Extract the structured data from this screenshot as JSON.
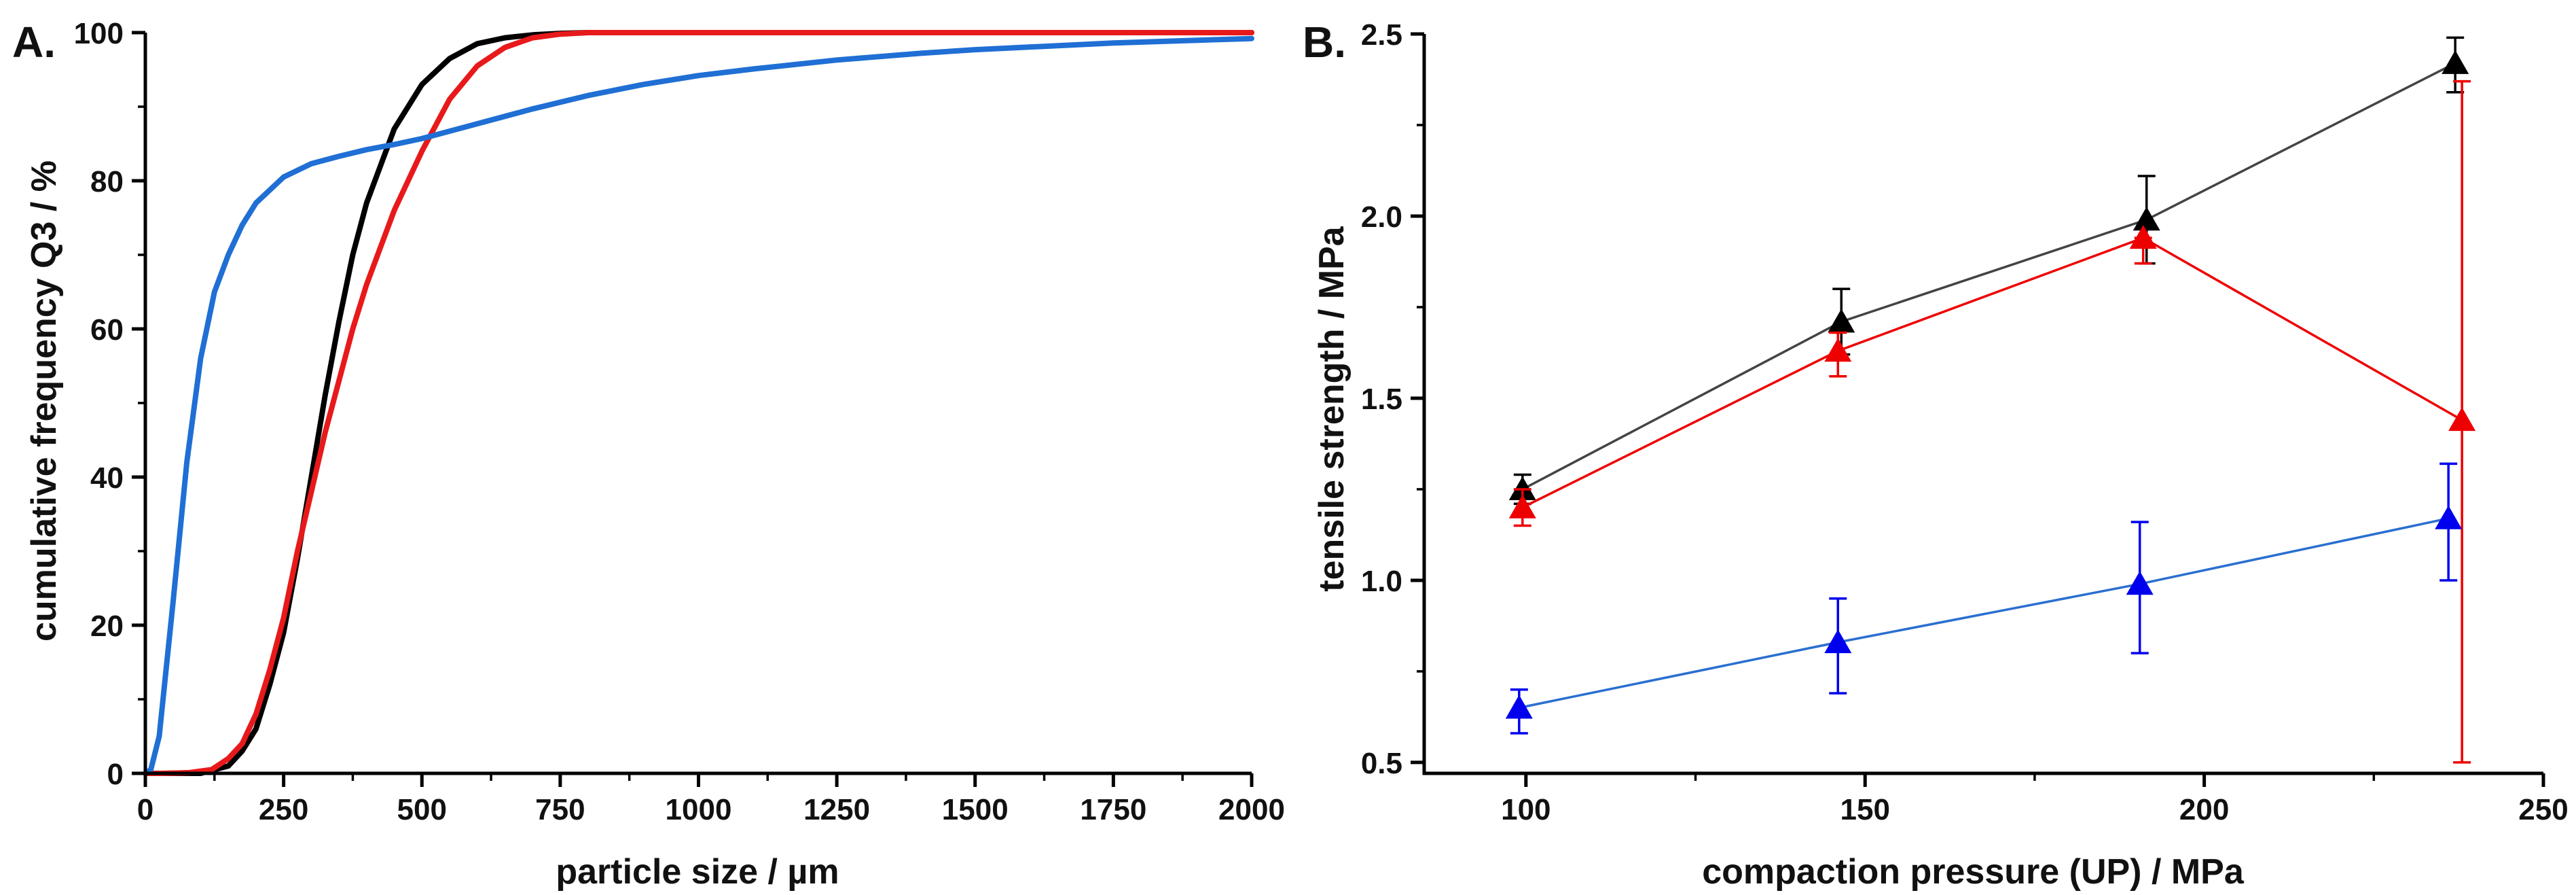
{
  "chart_data": [
    {
      "panel_label": "A.",
      "type": "line",
      "xlabel": "particle size / µm",
      "ylabel": "cumulative frequency Q3 / %",
      "xlim": [
        0,
        2000
      ],
      "ylim": [
        0,
        100
      ],
      "x_ticks": [
        0,
        250,
        500,
        750,
        1000,
        1250,
        1500,
        1750,
        2000
      ],
      "y_ticks": [
        0,
        20,
        40,
        60,
        80,
        100
      ],
      "grid": false,
      "legend": "none",
      "series": [
        {
          "name": "black",
          "color": "#000000",
          "x": [
            0,
            100,
            150,
            175,
            200,
            225,
            250,
            275,
            300,
            325,
            350,
            375,
            400,
            450,
            500,
            550,
            600,
            650,
            700,
            750,
            800,
            2000
          ],
          "y": [
            0,
            0,
            1,
            3,
            6,
            12,
            19,
            29,
            40,
            51,
            61,
            70,
            77,
            87,
            93,
            96.5,
            98.5,
            99.3,
            99.7,
            99.9,
            100,
            100
          ]
        },
        {
          "name": "red",
          "color": "#e8191b",
          "x": [
            0,
            30,
            80,
            120,
            150,
            175,
            200,
            225,
            250,
            275,
            300,
            325,
            350,
            375,
            400,
            450,
            500,
            550,
            600,
            650,
            700,
            750,
            800,
            2000
          ],
          "y": [
            0,
            0,
            0.1,
            0.5,
            2,
            4,
            8,
            14,
            21,
            30,
            38,
            46,
            53,
            60,
            66,
            76,
            84,
            91,
            95.5,
            98,
            99.3,
            99.8,
            100,
            100
          ]
        },
        {
          "name": "blue",
          "color": "#1f6fd4",
          "x": [
            0,
            10,
            25,
            50,
            75,
            100,
            125,
            150,
            175,
            200,
            250,
            300,
            350,
            400,
            450,
            500,
            600,
            700,
            800,
            900,
            1000,
            1100,
            1250,
            1400,
            1500,
            1750,
            2000
          ],
          "y": [
            0,
            0.5,
            5,
            23,
            42,
            56,
            65,
            70,
            74,
            77,
            80.5,
            82.3,
            83.3,
            84.2,
            84.9,
            85.7,
            87.7,
            89.7,
            91.5,
            93,
            94.2,
            95.1,
            96.3,
            97.2,
            97.7,
            98.6,
            99.2
          ]
        }
      ]
    },
    {
      "panel_label": "B.",
      "type": "line",
      "xlabel": "compaction pressure (UP) / MPa",
      "ylabel": "tensile strength / MPa",
      "xlim": [
        85,
        250
      ],
      "ylim": [
        0.47,
        2.5
      ],
      "x_ticks": [
        100,
        150,
        200,
        250
      ],
      "y_ticks": [
        0.5,
        1.0,
        1.5,
        2.0,
        2.5
      ],
      "y_tick_labels": [
        "0.5",
        "1.0",
        "1.5",
        "2.0",
        "2.5"
      ],
      "grid": false,
      "legend": "none",
      "marker": "triangle",
      "series": [
        {
          "name": "black",
          "color": "#000000",
          "line_color": "#444444",
          "x": [
            99.5,
            146.5,
            191.5,
            237
          ],
          "y": [
            1.25,
            1.71,
            1.99,
            2.42
          ],
          "err_low": [
            0.04,
            0.09,
            0.12,
            0.08
          ],
          "err_high": [
            0.04,
            0.09,
            0.12,
            0.07
          ]
        },
        {
          "name": "red",
          "color": "#ee0000",
          "line_color": "#ee0000",
          "x": [
            99.5,
            146,
            191,
            238
          ],
          "y": [
            1.2,
            1.63,
            1.94,
            1.44
          ],
          "err_low": [
            0.05,
            0.07,
            0.07,
            0.94
          ],
          "err_high": [
            0.05,
            0.05,
            0.0,
            0.93
          ]
        },
        {
          "name": "blue",
          "color": "#0000ee",
          "line_color": "#2a6fd0",
          "x": [
            99,
            146,
            190.5,
            236
          ],
          "y": [
            0.65,
            0.83,
            0.99,
            1.17
          ],
          "err_low": [
            0.07,
            0.14,
            0.19,
            0.17
          ],
          "err_high": [
            0.05,
            0.12,
            0.17,
            0.15
          ]
        }
      ]
    }
  ]
}
